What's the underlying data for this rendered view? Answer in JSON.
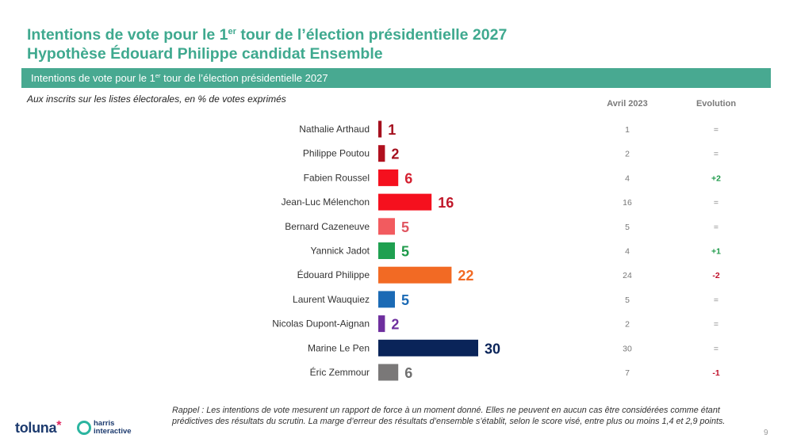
{
  "header": {
    "title_line1_before": "Intentions de vote pour le 1",
    "title_line1_sup": "er",
    "title_line1_after": " tour de l’élection présidentielle 2027",
    "title_line2": "Hypothèse Édouard Philippe candidat Ensemble"
  },
  "band": {
    "text_before": "Intentions de vote pour le 1",
    "text_sup": "er",
    "text_after": " tour de l’élection présidentielle 2027"
  },
  "subtitle": "Aux inscrits sur les listes électorales, en % de votes exprimés",
  "columns": {
    "previous": "Avril 2023",
    "evolution": "Evolution"
  },
  "colors": {
    "accent": "#48a991",
    "title": "#3fa98f",
    "evolution_up": "#1e9a4a",
    "evolution_down": "#c0102a",
    "evolution_equal": "#888888"
  },
  "chart_data": {
    "type": "bar",
    "orientation": "horizontal",
    "title": "Intentions de vote pour le 1er tour de l’élection présidentielle 2027",
    "xlabel": "",
    "ylabel": "",
    "unit": "%",
    "xlim": [
      0,
      30
    ],
    "grid": false,
    "categories": [
      "Nathalie Arthaud",
      "Philippe Poutou",
      "Fabien Roussel",
      "Jean-Luc Mélenchon",
      "Bernard Cazeneuve",
      "Yannick Jadot",
      "Édouard Philippe",
      "Laurent Wauquiez",
      "Nicolas Dupont-Aignan",
      "Marine Le Pen",
      "Éric Zemmour"
    ],
    "values": [
      1,
      2,
      6,
      16,
      5,
      5,
      22,
      5,
      2,
      30,
      6
    ],
    "colors": [
      "#a5101e",
      "#b0101e",
      "#f5101e",
      "#f5101e",
      "#f25b5f",
      "#1fa050",
      "#f26a24",
      "#1b6ab5",
      "#6e2f9e",
      "#0a2459",
      "#7a7878"
    ],
    "label_colors": [
      "#a5101e",
      "#a5101e",
      "#d42030",
      "#c0182a",
      "#e05560",
      "#1e9a4a",
      "#f26a24",
      "#1b6ab5",
      "#6e2f9e",
      "#0a2459",
      "#6f6f6f"
    ],
    "series": [
      {
        "name": "Intentions de vote",
        "values": [
          1,
          2,
          6,
          16,
          5,
          5,
          22,
          5,
          2,
          30,
          6
        ]
      },
      {
        "name": "Avril 2023",
        "values": [
          1,
          2,
          4,
          16,
          5,
          4,
          24,
          5,
          2,
          30,
          7
        ]
      }
    ],
    "evolution": [
      "=",
      "=",
      "+2",
      "=",
      "=",
      "+1",
      "-2",
      "=",
      "=",
      "=",
      "-1"
    ]
  },
  "footnote": "Rappel : Les intentions de vote mesurent un rapport de force à un moment donné. Elles ne peuvent en aucun cas être considérées comme étant prédictives des résultats du scrutin. La marge d’erreur des résultats d’ensemble s’établit, selon le score visé, entre plus ou moins 1,4 et 2,9 points.",
  "page_number": "9",
  "logos": {
    "toluna": "toluna",
    "harris_line1": "harris",
    "harris_line2": "interactive"
  }
}
